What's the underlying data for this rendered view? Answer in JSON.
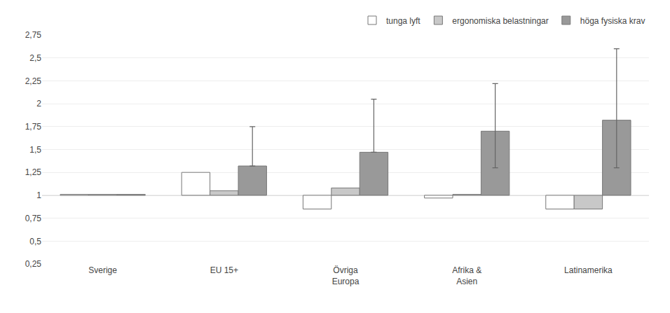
{
  "chart_data": {
    "type": "bar",
    "categories": [
      "Sverige",
      "EU 15+",
      "Övriga\nEuropa",
      "Afrika &\nAsien",
      "Latinamerika"
    ],
    "series": [
      {
        "name": "tunga lyft",
        "color": "#ffffff",
        "values": [
          1.01,
          1.25,
          0.85,
          0.97,
          0.85
        ],
        "ci_high": [
          null,
          null,
          null,
          null,
          null
        ],
        "ci_low": [
          null,
          null,
          null,
          null,
          null
        ]
      },
      {
        "name": "ergonomiska belastningar",
        "color": "#c8c8c8",
        "values": [
          1.01,
          1.05,
          1.08,
          1.01,
          0.85
        ],
        "ci_high": [
          null,
          null,
          null,
          null,
          null
        ],
        "ci_low": [
          null,
          null,
          null,
          null,
          null
        ]
      },
      {
        "name": "höga fysiska krav",
        "color": "#999999",
        "values": [
          1.01,
          1.32,
          1.47,
          1.7,
          1.82
        ],
        "ci_high": [
          null,
          1.75,
          2.05,
          2.22,
          2.6
        ],
        "ci_low": [
          null,
          null,
          null,
          1.3,
          1.3
        ]
      }
    ],
    "baseline": 1,
    "ylim": [
      0.25,
      2.75
    ],
    "yticks": [
      {
        "value": 0.25,
        "label": "0,25"
      },
      {
        "value": 0.5,
        "label": "0,5"
      },
      {
        "value": 0.75,
        "label": "0,75"
      },
      1,
      {
        "value": 1.25,
        "label": "1,25"
      },
      {
        "value": 1.5,
        "label": "1,5"
      },
      {
        "value": 1.75,
        "label": "1,75"
      },
      2,
      {
        "value": 2.25,
        "label": "2,25"
      },
      {
        "value": 2.5,
        "label": "2,5"
      },
      {
        "value": 2.75,
        "label": "2,75"
      }
    ],
    "grid": true,
    "legend": "upper right"
  }
}
